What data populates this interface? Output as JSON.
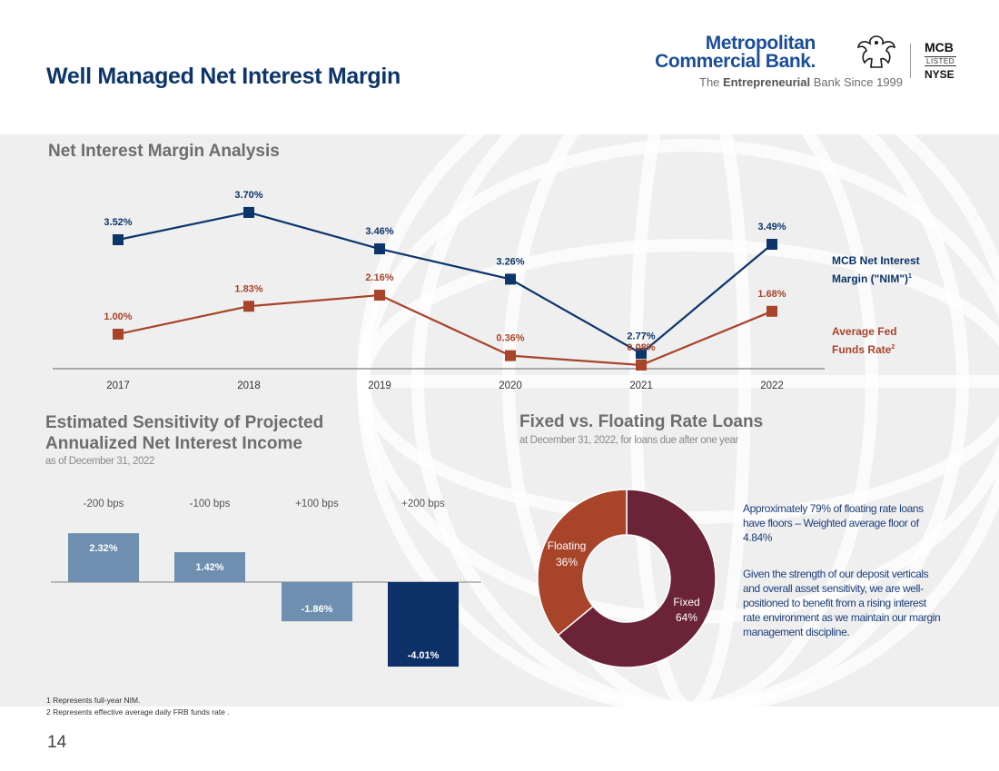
{
  "header": {
    "title": "Well Managed Net Interest Margin",
    "logo_line1": "Metropolitan",
    "logo_line2": "Commercial Bank.",
    "tagline_pre": "The ",
    "tagline_bold": "Entrepreneurial",
    "tagline_post": " Bank Since 1999",
    "ticker": "MCB",
    "listed": "LISTED",
    "exchange": "NYSE"
  },
  "sections": {
    "nim_title": "Net Interest Margin Analysis",
    "sensitivity_title_1": "Estimated Sensitivity of Projected",
    "sensitivity_title_2": "Annualized Net Interest Income",
    "sensitivity_sub": "as of December 31, 2022",
    "loans_title": "Fixed vs. Floating Rate Loans",
    "loans_sub": "at December 31, 2022, for loans due after one year"
  },
  "legend": {
    "nim_1": "MCB Net Interest",
    "nim_2": "Margin (\"NIM\")",
    "nim_sup": "1",
    "fed_1": "Average Fed",
    "fed_2": "Funds Rate",
    "fed_sup": "2"
  },
  "notes": {
    "floors": "Approximately 79% of floating rate loans have floors – Weighted average floor of 4.84%",
    "strength": "Given the strength of our deposit verticals and overall asset sensitivity, we are well-positioned to benefit from a rising interest rate environment as we maintain our margin management discipline."
  },
  "footnotes": {
    "f1": "1 Represents full-year NIM.",
    "f2": "2 Represents effective average daily FRB funds rate ."
  },
  "page_number": "14",
  "colors": {
    "nim": "#0c3569",
    "fed": "#a8442a",
    "bar_light": "#6e8fb0",
    "bar_dark": "#0e3068",
    "fixed": "#6b2337",
    "floating": "#a8442a"
  },
  "chart_data": [
    {
      "type": "line",
      "title": "Net Interest Margin Analysis",
      "x": [
        "2017",
        "2018",
        "2019",
        "2020",
        "2021",
        "2022"
      ],
      "series": [
        {
          "name": "MCB Net Interest Margin (\"NIM\")",
          "values": [
            3.52,
            3.7,
            3.46,
            3.26,
            2.77,
            3.49
          ],
          "labels": [
            "3.52%",
            "3.70%",
            "3.46%",
            "3.26%",
            "2.77%",
            "3.49%"
          ]
        },
        {
          "name": "Average Fed Funds Rate",
          "values": [
            1.0,
            1.83,
            2.16,
            0.36,
            0.08,
            1.68
          ],
          "labels": [
            "1.00%",
            "1.83%",
            "2.16%",
            "0.36%",
            "0.08%",
            "1.68%"
          ]
        }
      ],
      "grid": false,
      "legend": "right"
    },
    {
      "type": "bar",
      "title": "Estimated Sensitivity of Projected Annualized Net Interest Income",
      "categories": [
        "-200 bps",
        "-100 bps",
        "+100 bps",
        "+200 bps"
      ],
      "values": [
        2.32,
        1.42,
        -1.86,
        -4.01
      ],
      "labels": [
        "2.32%",
        "1.42%",
        "-1.86%",
        "-4.01%"
      ]
    },
    {
      "type": "pie",
      "title": "Fixed vs. Floating Rate Loans",
      "donut": true,
      "slices": [
        {
          "name": "Fixed",
          "value": 64,
          "label": "64%"
        },
        {
          "name": "Floating",
          "value": 36,
          "label": "36%"
        }
      ]
    }
  ]
}
